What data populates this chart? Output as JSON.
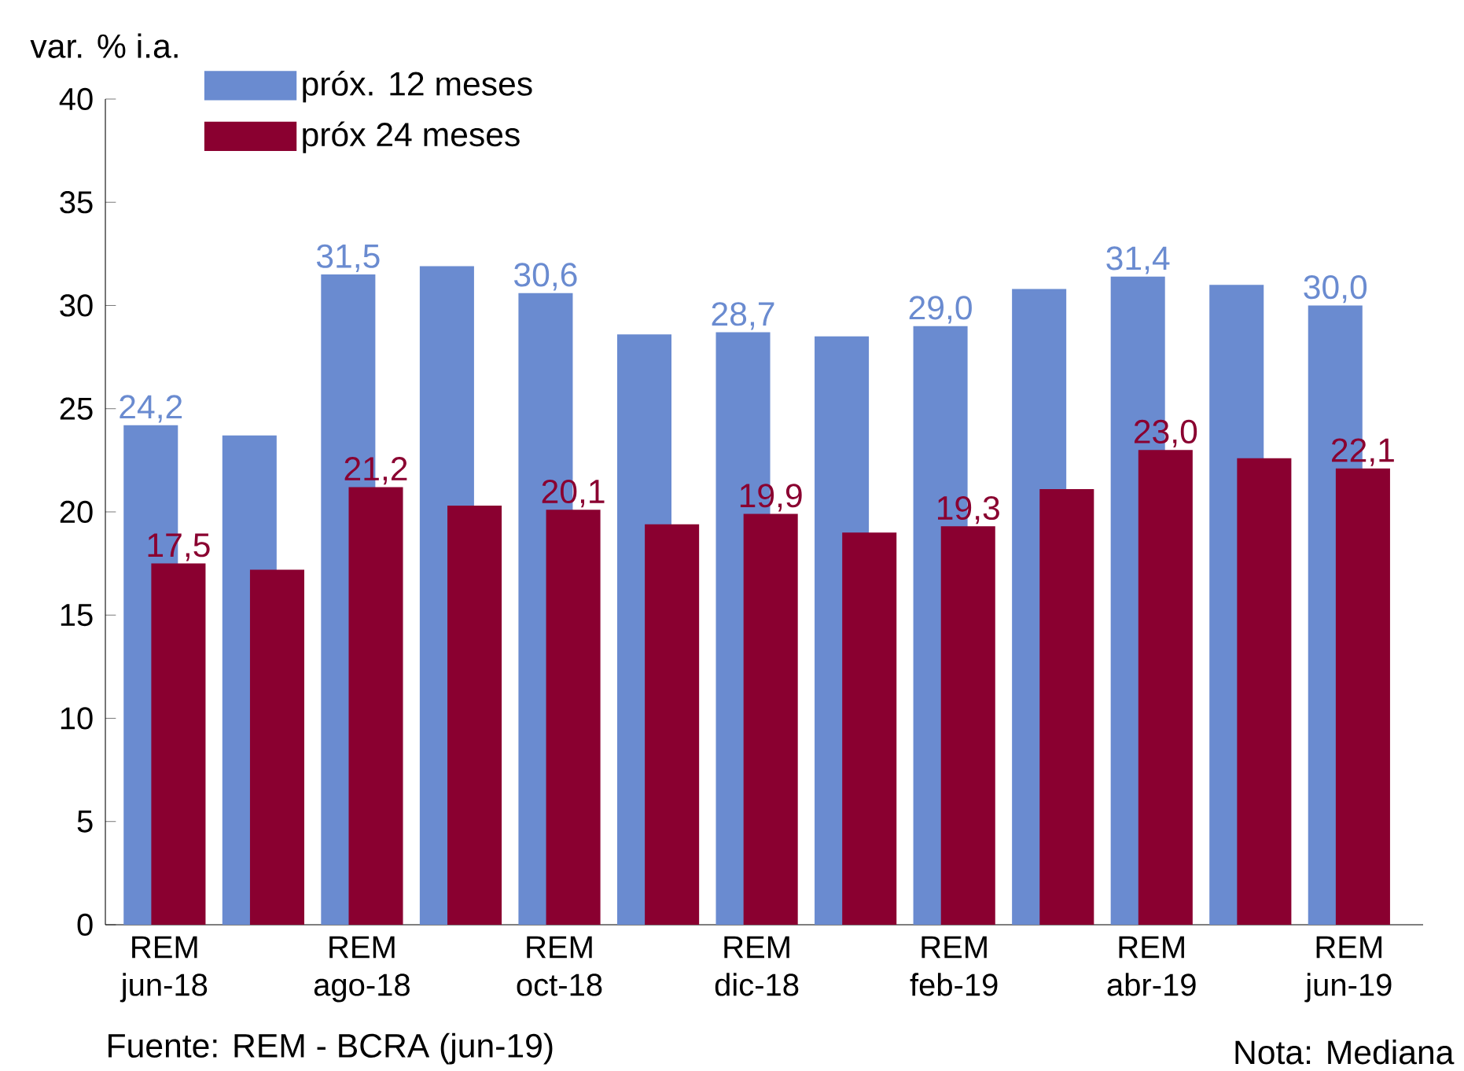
{
  "chart_data": {
    "type": "bar",
    "ylabel": "var. % i.a.",
    "categories": [
      "REM jun-18",
      null,
      "REM ago-18",
      null,
      "REM oct-18",
      null,
      "REM dic-18",
      null,
      "REM feb-19",
      null,
      "REM abr-19",
      null,
      "REM jun-19"
    ],
    "series": [
      {
        "name": "próx. 12 meses",
        "color": "#6a8bd0",
        "values": [
          24.2,
          23.7,
          31.5,
          31.9,
          30.6,
          28.6,
          28.7,
          28.5,
          29.0,
          30.8,
          31.4,
          31.0,
          30.0
        ],
        "value_labels": [
          "24,2",
          null,
          "31,5",
          null,
          "30,6",
          null,
          "28,7",
          null,
          "29,0",
          null,
          "31,4",
          null,
          "30,0"
        ]
      },
      {
        "name": "próx 24 meses",
        "color": "#8a0030",
        "values": [
          17.5,
          17.2,
          21.2,
          20.3,
          20.1,
          19.4,
          19.9,
          19.0,
          19.3,
          21.1,
          23.0,
          22.6,
          22.1
        ],
        "value_labels": [
          "17,5",
          null,
          "21,2",
          null,
          "20,1",
          null,
          "19,9",
          null,
          "19,3",
          null,
          "23,0",
          null,
          "22,1"
        ]
      }
    ],
    "ylim": [
      0,
      40
    ],
    "yticks": [
      0,
      5,
      10,
      15,
      20,
      25,
      30,
      35,
      40
    ],
    "legend": "top left",
    "annotations": [
      "Fuente: REM - BCRA (jun-19)",
      "Nota: Mediana"
    ]
  }
}
